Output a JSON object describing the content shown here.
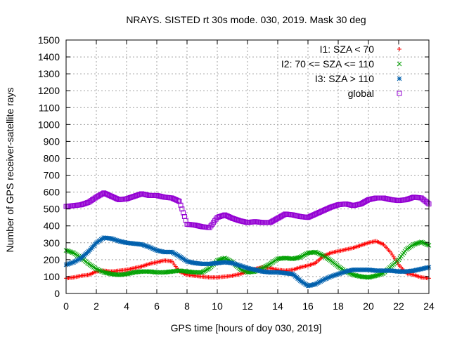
{
  "chart_data": {
    "type": "scatter",
    "title": "NRAYS. SISTED rt 30s mode. 030, 2019. Mask 30 deg",
    "xlabel": "GPS time [hours of doy 030, 2019]",
    "ylabel": "Number of GPS receiver-satellite rays",
    "xlim": [
      0,
      24
    ],
    "ylim": [
      0,
      1500
    ],
    "xticks": [
      0,
      2,
      4,
      6,
      8,
      10,
      12,
      14,
      16,
      18,
      20,
      22,
      24
    ],
    "yticks": [
      0,
      100,
      200,
      300,
      400,
      500,
      600,
      700,
      800,
      900,
      1000,
      1100,
      1200,
      1300,
      1400,
      1500
    ],
    "grid": true,
    "legend_position": "top-right",
    "series": [
      {
        "name": "I1: SZA < 70",
        "marker": "plus",
        "color": "#ff0000",
        "x": [
          0,
          0.5,
          1,
          1.5,
          2,
          2.5,
          3,
          3.5,
          4,
          4.5,
          5,
          5.5,
          6,
          6.5,
          7,
          7.5,
          8,
          8.5,
          9,
          9.5,
          10,
          10.5,
          11,
          11.5,
          12,
          12.5,
          13,
          13.5,
          14,
          14.5,
          15,
          15.5,
          16,
          16.5,
          17,
          17.5,
          18,
          18.5,
          19,
          19.5,
          20,
          20.5,
          21,
          21.5,
          22,
          22.5,
          23,
          23.5,
          24
        ],
        "values": [
          90,
          95,
          105,
          110,
          130,
          135,
          130,
          135,
          140,
          150,
          160,
          175,
          185,
          195,
          190,
          130,
          110,
          105,
          100,
          95,
          95,
          100,
          105,
          115,
          130,
          145,
          155,
          150,
          140,
          135,
          140,
          155,
          165,
          180,
          220,
          240,
          250,
          260,
          270,
          285,
          300,
          310,
          290,
          240,
          170,
          120,
          110,
          95,
          90
        ]
      },
      {
        "name": "I2: 70 <= SZA <= 110",
        "marker": "cross",
        "color": "#00a000",
        "x": [
          0,
          0.5,
          1,
          1.5,
          2,
          2.5,
          3,
          3.5,
          4,
          4.5,
          5,
          5.5,
          6,
          6.5,
          7,
          7.5,
          8,
          8.5,
          9,
          9.5,
          10,
          10.5,
          11,
          11.5,
          12,
          12.5,
          13,
          13.5,
          14,
          14.5,
          15,
          15.5,
          16,
          16.5,
          17,
          17.5,
          18,
          18.5,
          19,
          19.5,
          20,
          20.5,
          21,
          21.5,
          22,
          22.5,
          23,
          23.5,
          24
        ],
        "values": [
          255,
          240,
          210,
          175,
          145,
          125,
          115,
          110,
          115,
          125,
          130,
          130,
          125,
          125,
          130,
          135,
          130,
          125,
          125,
          150,
          195,
          210,
          185,
          145,
          125,
          130,
          150,
          175,
          205,
          210,
          205,
          215,
          240,
          245,
          225,
          195,
          160,
          130,
          110,
          100,
          95,
          105,
          120,
          160,
          200,
          260,
          290,
          305,
          285
        ]
      },
      {
        "name": "I3: SZA > 110",
        "marker": "star",
        "color": "#0060ad",
        "x": [
          0,
          0.5,
          1,
          1.5,
          2,
          2.5,
          3,
          3.5,
          4,
          4.5,
          5,
          5.5,
          6,
          6.5,
          7,
          7.5,
          8,
          8.5,
          9,
          9.5,
          10,
          10.5,
          11,
          11.5,
          12,
          12.5,
          13,
          13.5,
          14,
          14.5,
          15,
          15.5,
          16,
          16.5,
          17,
          17.5,
          18,
          18.5,
          19,
          19.5,
          20,
          20.5,
          21,
          21.5,
          22,
          22.5,
          23,
          23.5,
          24
        ],
        "values": [
          170,
          185,
          210,
          250,
          300,
          330,
          325,
          310,
          300,
          295,
          290,
          275,
          255,
          245,
          245,
          220,
          190,
          180,
          175,
          175,
          180,
          185,
          180,
          165,
          150,
          140,
          130,
          125,
          125,
          120,
          115,
          75,
          45,
          55,
          80,
          100,
          115,
          130,
          140,
          140,
          140,
          135,
          135,
          135,
          130,
          130,
          135,
          145,
          155
        ]
      },
      {
        "name": "global",
        "marker": "square",
        "color": "#9400d3",
        "x": [
          0,
          0.5,
          1,
          1.5,
          2,
          2.5,
          3,
          3.5,
          4,
          4.5,
          5,
          5.5,
          6,
          6.5,
          7,
          7.5,
          8,
          8.5,
          9,
          9.5,
          10,
          10.5,
          11,
          11.5,
          12,
          12.5,
          13,
          13.5,
          14,
          14.5,
          15,
          15.5,
          16,
          16.5,
          17,
          17.5,
          18,
          18.5,
          19,
          19.5,
          20,
          20.5,
          21,
          21.5,
          22,
          22.5,
          23,
          23.5,
          24
        ],
        "values": [
          515,
          520,
          525,
          540,
          570,
          595,
          575,
          555,
          560,
          575,
          590,
          580,
          580,
          570,
          565,
          545,
          410,
          405,
          395,
          390,
          450,
          465,
          445,
          430,
          420,
          425,
          420,
          420,
          445,
          470,
          465,
          455,
          450,
          470,
          490,
          510,
          525,
          530,
          520,
          530,
          555,
          565,
          565,
          555,
          550,
          555,
          570,
          565,
          530
        ]
      }
    ]
  }
}
